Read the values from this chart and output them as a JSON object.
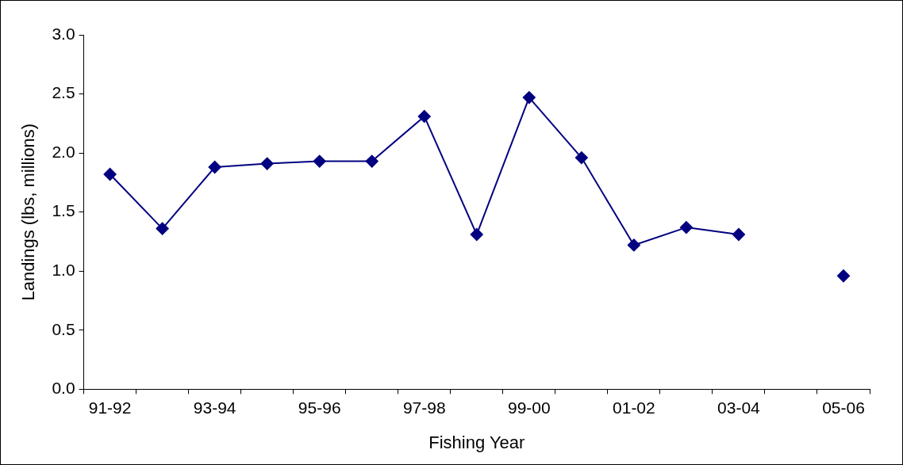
{
  "chart_data": {
    "type": "line",
    "xlabel": "Fishing Year",
    "ylabel": "Landings (lbs, millions)",
    "categories": [
      "91-92",
      null,
      "93-94",
      null,
      "95-96",
      null,
      "97-98",
      null,
      "99-00",
      null,
      "01-02",
      null,
      "03-04",
      null,
      "05-06"
    ],
    "series": [
      {
        "color": "#000080",
        "values": [
          1.82,
          1.36,
          1.88,
          1.91,
          1.93,
          1.93,
          2.31,
          1.31,
          2.47,
          1.96,
          1.22,
          1.37,
          1.31,
          null,
          0.96
        ]
      }
    ],
    "ylim": [
      0,
      3
    ],
    "yticks": [
      {
        "value": 0,
        "label": "0.0"
      },
      {
        "value": 0.5,
        "label": "0.5"
      },
      {
        "value": 1,
        "label": "1.0"
      },
      {
        "value": 1.5,
        "label": "1.5"
      },
      {
        "value": 2,
        "label": "2.0"
      },
      {
        "value": 2.5,
        "label": "2.5"
      },
      {
        "value": 3,
        "label": "3.0"
      }
    ],
    "marker": "diamond",
    "line_style": "solid"
  }
}
